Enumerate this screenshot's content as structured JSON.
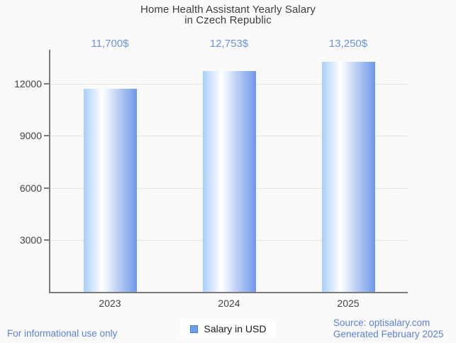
{
  "title": {
    "line1": "Home Health Assistant Yearly Salary",
    "line2": "in Czech Republic"
  },
  "chart_data": {
    "type": "bar",
    "categories": [
      "2023",
      "2024",
      "2025"
    ],
    "values": [
      11700,
      12753,
      13250
    ],
    "value_labels": [
      "11,700$",
      "12,753$",
      "13,250$"
    ],
    "series": [
      {
        "name": "Salary in USD",
        "values": [
          11700,
          12753,
          13250
        ]
      }
    ],
    "title": "Home Health Assistant Yearly Salary in Czech Republic",
    "xlabel": "",
    "ylabel": "",
    "yticks": [
      3000,
      6000,
      9000,
      12000
    ],
    "ylim": [
      0,
      14000
    ],
    "grid": true,
    "legend_position": "bottom"
  },
  "legend": {
    "label": "Salary in USD"
  },
  "footer": {
    "disclaimer": "For informational use only",
    "source": "Source: optisalary.com",
    "generated": "Generated February 2025"
  },
  "colors": {
    "background": "#fafafa",
    "title_text": "#3d3d3d",
    "axis_text": "#424242",
    "axis_line": "#7b7b7b",
    "gridline": "#e4e4e4",
    "value_label_text": "#6d90e0",
    "footer_text": "#5c80d9",
    "bar_gradient_left": "#a9cef8",
    "bar_gradient_mid": "#ffffff",
    "bar_gradient_right": "#6f97e8",
    "legend_swatch_fill": "#6d9eeb",
    "legend_swatch_border": "#4c7dbd"
  }
}
